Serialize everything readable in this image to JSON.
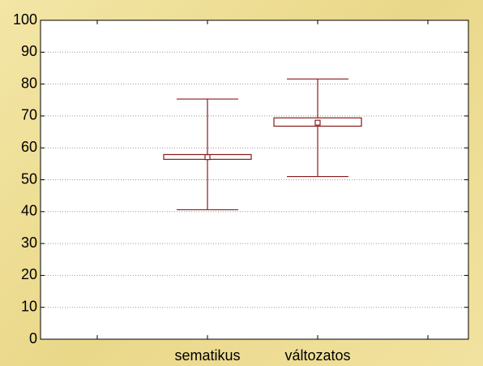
{
  "chart_data": {
    "type": "box",
    "categories": [
      "sematikus",
      "változatos"
    ],
    "center": [
      57.1,
      67.9
    ],
    "box_low": [
      56.4,
      66.8
    ],
    "box_high": [
      57.9,
      69.4
    ],
    "whisker_low": [
      40.6,
      51.0
    ],
    "whisker_high": [
      75.3,
      81.6
    ],
    "color": "#8b1a1a",
    "ylim": [
      0,
      100
    ],
    "yticks": [
      0,
      10,
      20,
      30,
      40,
      50,
      60,
      70,
      80,
      90,
      100
    ],
    "grid": true
  }
}
